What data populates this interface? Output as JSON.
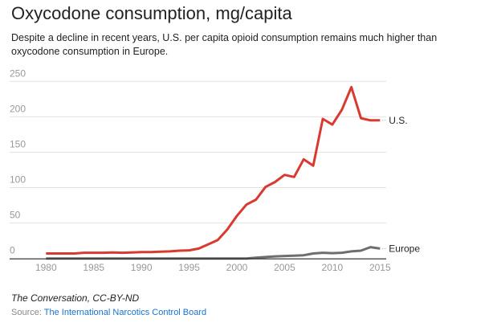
{
  "title": "Oxycodone consumption, mg/capita",
  "subtitle": "Despite a decline in recent years, U.S. per capita opioid consumption remains much higher than oxycodone consumption in Europe.",
  "credit": "The Conversation, CC-BY-ND",
  "source_label": "Source:",
  "source_link": "The International Narcotics Control Board",
  "chart_data": {
    "type": "line",
    "title": "Oxycodone consumption, mg/capita",
    "xlabel": "",
    "ylabel": "",
    "xlim": [
      1980,
      2015
    ],
    "ylim": [
      0,
      250
    ],
    "xticks": [
      1980,
      1985,
      1990,
      1995,
      2000,
      2005,
      2010,
      2015
    ],
    "yticks": [
      0,
      50,
      100,
      150,
      200,
      250
    ],
    "grid": true,
    "x": [
      1980,
      1981,
      1982,
      1983,
      1984,
      1985,
      1986,
      1987,
      1988,
      1989,
      1990,
      1991,
      1992,
      1993,
      1994,
      1995,
      1996,
      1997,
      1998,
      1999,
      2000,
      2001,
      2002,
      2003,
      2004,
      2005,
      2006,
      2007,
      2008,
      2009,
      2010,
      2011,
      2012,
      2013,
      2014,
      2015
    ],
    "series": [
      {
        "name": "U.S.",
        "color": "#d93a2f",
        "values": [
          7,
          7,
          7,
          7,
          8,
          8,
          8,
          8.5,
          8,
          8.5,
          9,
          9,
          9.5,
          10,
          11,
          11.5,
          14,
          20,
          26,
          41,
          60,
          76,
          83,
          101,
          108,
          118,
          115,
          140,
          131,
          197,
          189,
          210,
          242,
          198,
          195,
          195
        ]
      },
      {
        "name": "Europe",
        "color": "#6e6e6e",
        "values": [
          0,
          0,
          0,
          0,
          0,
          0,
          0,
          0,
          0,
          0,
          0,
          0,
          0,
          0,
          0,
          0,
          0,
          0,
          0,
          0,
          0,
          0,
          1,
          2,
          3,
          3.5,
          4,
          4.5,
          7,
          8,
          7.5,
          8,
          10,
          11,
          16,
          14
        ]
      }
    ]
  }
}
